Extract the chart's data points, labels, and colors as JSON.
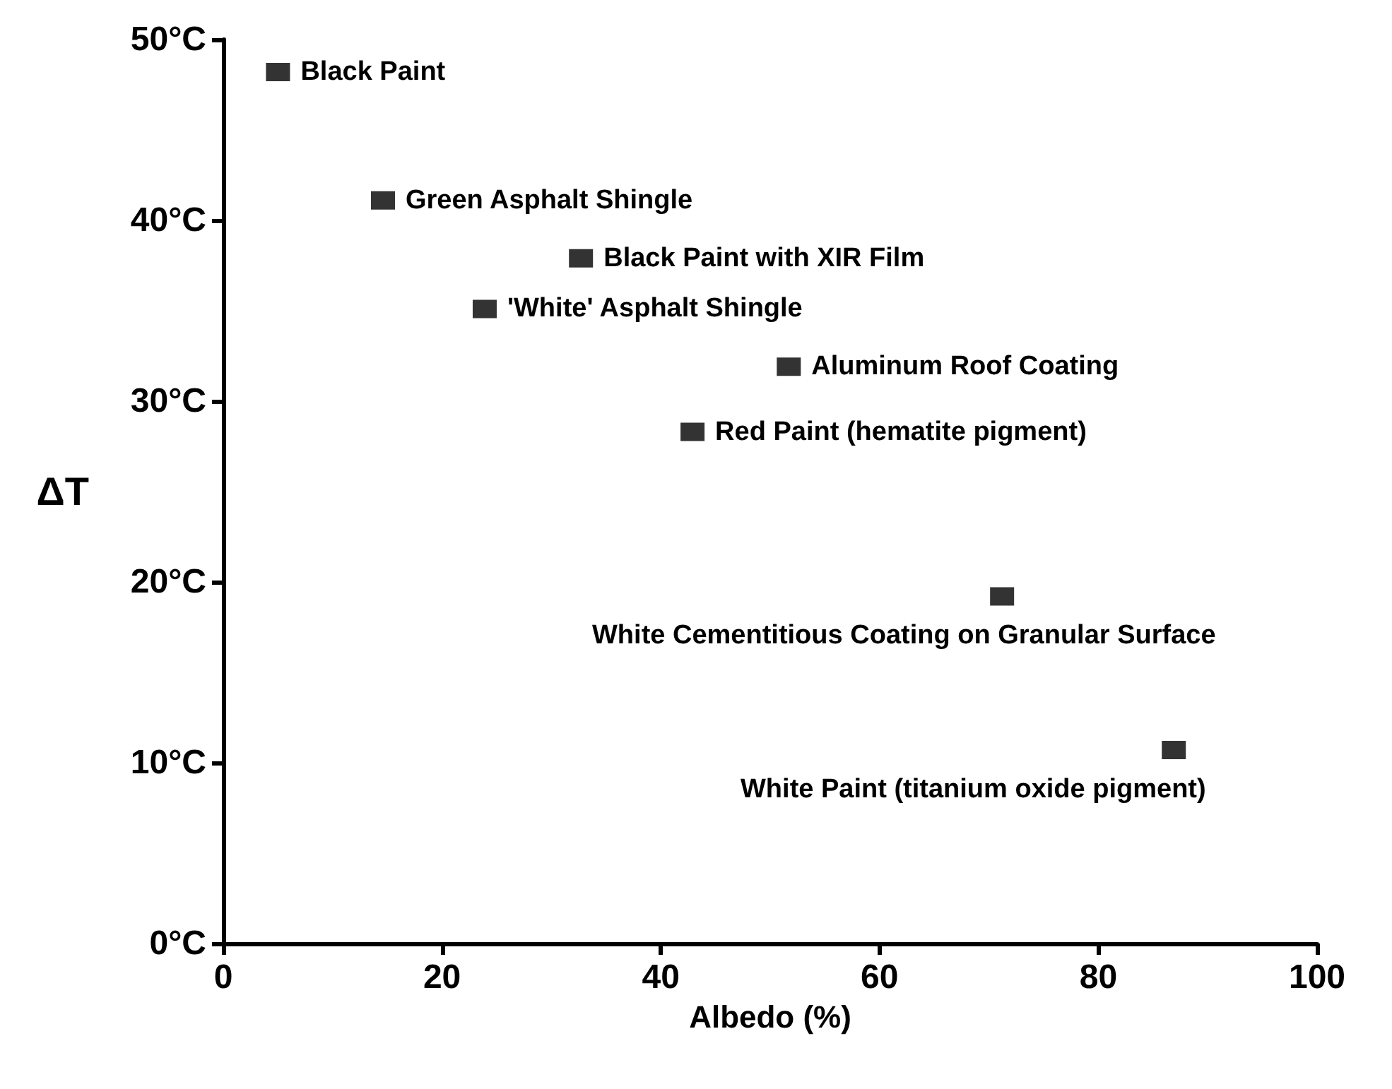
{
  "chart_data": {
    "type": "scatter",
    "xlabel": "Albedo (%)",
    "ylabel": "ΔT",
    "x": [
      5,
      14.6,
      32.7,
      23.9,
      51.7,
      42.9,
      71.2,
      86.9
    ],
    "series": [
      {
        "color": "#000000",
        "values": [
          48.2,
          41.1,
          37.9,
          35.1,
          31.9,
          28.3,
          19.2,
          10.7
        ]
      }
    ],
    "xlim": [
      0,
      100
    ],
    "xticks": [
      0,
      20,
      40,
      60,
      80,
      100
    ],
    "ylim": [
      0,
      50
    ],
    "yticks": [
      {
        "value": 0,
        "label": "0°C"
      },
      {
        "value": 10,
        "label": "10°C"
      },
      {
        "value": 20,
        "label": "20°C"
      },
      {
        "value": 30,
        "label": "30°C"
      },
      {
        "value": 40,
        "label": "40°C"
      },
      {
        "value": 50,
        "label": "50°C"
      }
    ],
    "marker": "square",
    "grid": false,
    "annotations": [
      {
        "text": "Black Paint",
        "x": 5,
        "y": 48.2
      },
      {
        "text": "Green Asphalt Shingle",
        "x": 14.6,
        "y": 41.1
      },
      {
        "text": "Black Paint with XIR Film",
        "x": 32.7,
        "y": 37.9
      },
      {
        "text": "'White' Asphalt Shingle",
        "x": 23.9,
        "y": 35.1
      },
      {
        "text": "Aluminum Roof Coating",
        "x": 51.7,
        "y": 31.9
      },
      {
        "text": "Red Paint (hematite pigment)",
        "x": 42.9,
        "y": 28.3
      },
      {
        "text": "White Cementitious Coating on Granular Surface",
        "x": 71.2,
        "y": 19.2
      },
      {
        "text": "White Paint (titanium oxide pigment)",
        "x": 86.9,
        "y": 10.7
      }
    ]
  }
}
